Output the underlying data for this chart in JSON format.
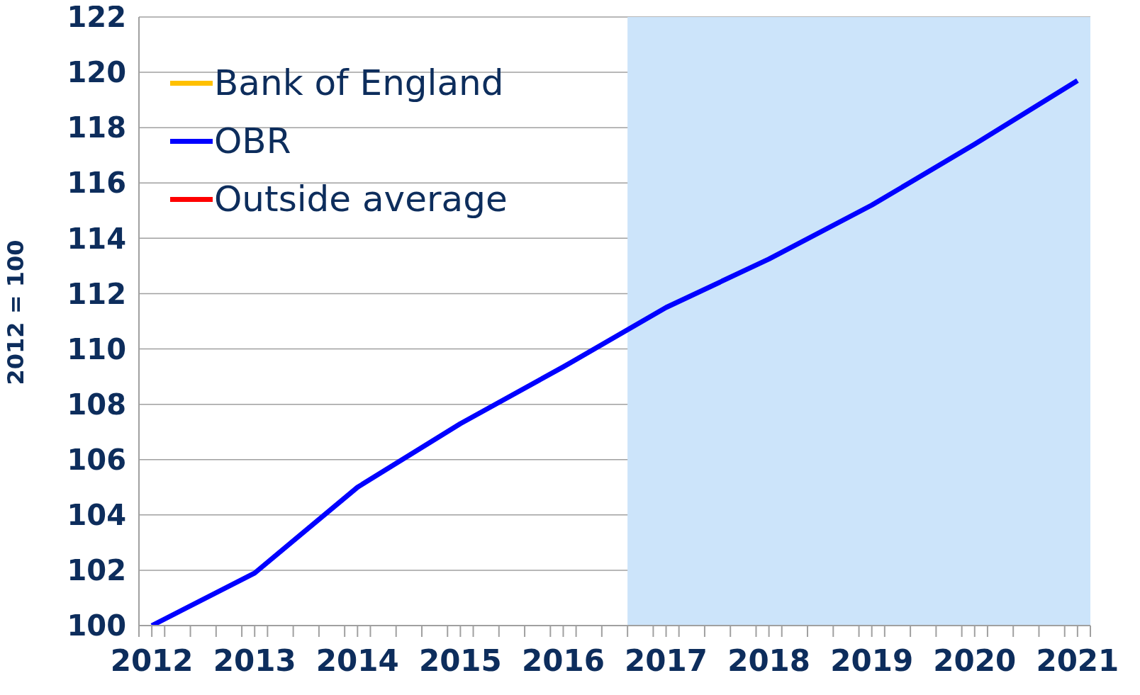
{
  "chart_data": {
    "type": "line",
    "ylabel": "2012 = 100",
    "x": [
      2012,
      2013,
      2014,
      2015,
      2016,
      2017,
      2018,
      2019,
      2020,
      2021
    ],
    "series": [
      {
        "name": "Bank of England",
        "color": "#ffc000",
        "values": [
          null,
          null,
          null,
          null,
          null,
          null,
          null,
          null,
          null,
          null
        ]
      },
      {
        "name": "OBR",
        "color": "#0000ff",
        "values": [
          100,
          101.9,
          105,
          107.3,
          109.35,
          111.5,
          113.25,
          115.2,
          117.4,
          119.7
        ]
      },
      {
        "name": "Outside average",
        "color": "#ff0000",
        "values": [
          null,
          null,
          null,
          null,
          null,
          null,
          null,
          null,
          null,
          null
        ]
      }
    ],
    "xlim": [
      2011.875,
      2021.125
    ],
    "xticks": [
      {
        "value": 2011.875,
        "label": null
      },
      2012,
      {
        "value": 2012.125,
        "label": null
      },
      {
        "value": 2012.375,
        "label": null
      },
      {
        "value": 2012.625,
        "label": null
      },
      {
        "value": 2012.875,
        "label": null
      },
      2013,
      {
        "value": 2013.125,
        "label": null
      },
      {
        "value": 2013.375,
        "label": null
      },
      {
        "value": 2013.625,
        "label": null
      },
      {
        "value": 2013.875,
        "label": null
      },
      2014,
      {
        "value": 2014.125,
        "label": null
      },
      {
        "value": 2014.375,
        "label": null
      },
      {
        "value": 2014.625,
        "label": null
      },
      {
        "value": 2014.875,
        "label": null
      },
      2015,
      {
        "value": 2015.125,
        "label": null
      },
      {
        "value": 2015.375,
        "label": null
      },
      {
        "value": 2015.625,
        "label": null
      },
      {
        "value": 2015.875,
        "label": null
      },
      2016,
      {
        "value": 2016.125,
        "label": null
      },
      {
        "value": 2016.375,
        "label": null
      },
      {
        "value": 2016.625,
        "label": null
      },
      {
        "value": 2016.875,
        "label": null
      },
      2017,
      {
        "value": 2017.125,
        "label": null
      },
      {
        "value": 2017.375,
        "label": null
      },
      {
        "value": 2017.625,
        "label": null
      },
      {
        "value": 2017.875,
        "label": null
      },
      2018,
      {
        "value": 2018.125,
        "label": null
      },
      {
        "value": 2018.375,
        "label": null
      },
      {
        "value": 2018.625,
        "label": null
      },
      {
        "value": 2018.875,
        "label": null
      },
      2019,
      {
        "value": 2019.125,
        "label": null
      },
      {
        "value": 2019.375,
        "label": null
      },
      {
        "value": 2019.625,
        "label": null
      },
      {
        "value": 2019.875,
        "label": null
      },
      2020,
      {
        "value": 2020.125,
        "label": null
      },
      {
        "value": 2020.375,
        "label": null
      },
      {
        "value": 2020.625,
        "label": null
      },
      {
        "value": 2020.875,
        "label": null
      },
      2021,
      {
        "value": 2021.125,
        "label": null
      }
    ],
    "ylim": [
      100,
      122
    ],
    "yticks": [
      100,
      102,
      104,
      106,
      108,
      110,
      112,
      114,
      116,
      118,
      120,
      122
    ],
    "bands": [
      {
        "axis": "x",
        "from": 2016.625,
        "to": 2021.125,
        "color": "#cce4fa"
      }
    ],
    "grid": "y",
    "legend": "top left",
    "marker": "none",
    "line_style": "solid"
  }
}
